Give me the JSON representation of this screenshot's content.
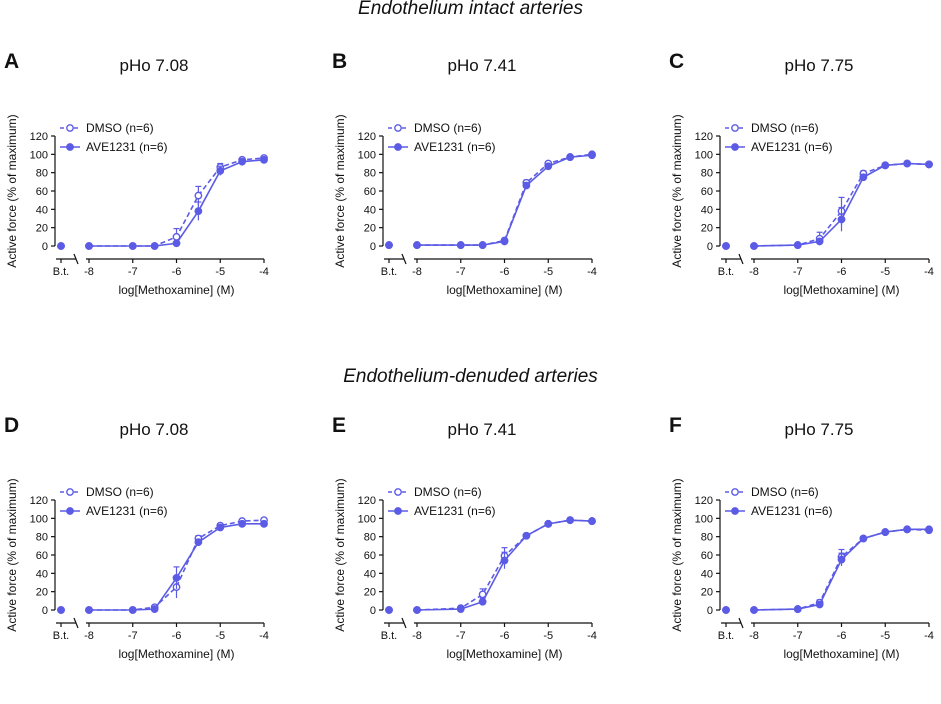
{
  "section_titles": {
    "intact": "Endothelium intact arteries",
    "denuded": "Endothelium-denuded arteries"
  },
  "colors": {
    "series": "#5b5be6",
    "axis": "#111111"
  },
  "chart_data": [
    {
      "type": "line",
      "panel": "A",
      "title": "pHo 7.08",
      "xlabel": "log[Methoxamine] (M)",
      "ylabel": "Active force (% of maximum)",
      "xlim": [
        -8,
        -4
      ],
      "ylim": [
        0,
        120
      ],
      "x_ticks": [
        -8,
        -7,
        -6,
        -5,
        -4
      ],
      "y_ticks": [
        0,
        20,
        40,
        60,
        80,
        100,
        120
      ],
      "baseline_label": "B.t.",
      "legend_position": "top-left",
      "x": [
        -8,
        -7,
        -6.5,
        -6,
        -5.5,
        -5,
        -4.5,
        -4
      ],
      "series": [
        {
          "name": "DMSO (n=6)",
          "style": "dashed-open",
          "baseline": 0,
          "values": [
            0,
            0,
            0,
            10,
            55,
            86,
            94,
            96
          ],
          "errors": [
            0,
            0,
            0,
            9,
            10,
            4,
            2,
            2
          ]
        },
        {
          "name": "AVE1231 (n=6)",
          "style": "solid-filled",
          "baseline": 0,
          "values": [
            0,
            0,
            0,
            3,
            38,
            82,
            92,
            94
          ],
          "errors": [
            0,
            0,
            0,
            2,
            10,
            5,
            2,
            2
          ]
        }
      ]
    },
    {
      "type": "line",
      "panel": "B",
      "title": "pHo 7.41",
      "xlabel": "log[Methoxamine] (M)",
      "ylabel": "Active force (% of maximum)",
      "xlim": [
        -8,
        -4
      ],
      "ylim": [
        0,
        120
      ],
      "x_ticks": [
        -8,
        -7,
        -6,
        -5,
        -4
      ],
      "y_ticks": [
        0,
        20,
        40,
        60,
        80,
        100,
        120
      ],
      "baseline_label": "B.t.",
      "legend_position": "top-left",
      "x": [
        -8,
        -7,
        -6.5,
        -6,
        -5.5,
        -5,
        -4.5,
        -4
      ],
      "series": [
        {
          "name": "DMSO (n=6)",
          "style": "dashed-open",
          "baseline": 1,
          "values": [
            1,
            1,
            1,
            6,
            69,
            90,
            97,
            100
          ],
          "errors": [
            0,
            0,
            0,
            1,
            3,
            2,
            1,
            1
          ]
        },
        {
          "name": "AVE1231 (n=6)",
          "style": "solid-filled",
          "baseline": 1,
          "values": [
            1,
            1,
            1,
            5,
            66,
            87,
            97,
            99
          ],
          "errors": [
            0,
            0,
            0,
            1,
            3,
            2,
            1,
            1
          ]
        }
      ]
    },
    {
      "type": "line",
      "panel": "C",
      "title": "pHo 7.75",
      "xlabel": "log[Methoxamine] (M)",
      "ylabel": "Active force (% of maximum)",
      "xlim": [
        -8,
        -4
      ],
      "ylim": [
        0,
        120
      ],
      "x_ticks": [
        -8,
        -7,
        -6,
        -5,
        -4
      ],
      "y_ticks": [
        0,
        20,
        40,
        60,
        80,
        100,
        120
      ],
      "baseline_label": "B.t.",
      "legend_position": "top-left",
      "x": [
        -8,
        -7,
        -6.5,
        -6,
        -5.5,
        -5,
        -4.5,
        -4
      ],
      "series": [
        {
          "name": "DMSO (n=6)",
          "style": "dashed-open",
          "baseline": 0,
          "values": [
            0,
            1,
            8,
            38,
            79,
            88,
            90,
            89
          ],
          "errors": [
            0,
            0,
            7,
            15,
            3,
            2,
            1,
            1
          ]
        },
        {
          "name": "AVE1231 (n=6)",
          "style": "solid-filled",
          "baseline": 0,
          "values": [
            0,
            1,
            5,
            29,
            75,
            88,
            90,
            89
          ],
          "errors": [
            0,
            0,
            2,
            13,
            3,
            2,
            1,
            1
          ]
        }
      ]
    },
    {
      "type": "line",
      "panel": "D",
      "title": "pHo 7.08",
      "xlabel": "log[Methoxamine] (M)",
      "ylabel": "Active force (% of maximum)",
      "xlim": [
        -8,
        -4
      ],
      "ylim": [
        0,
        120
      ],
      "x_ticks": [
        -8,
        -7,
        -6,
        -5,
        -4
      ],
      "y_ticks": [
        0,
        20,
        40,
        60,
        80,
        100,
        120
      ],
      "baseline_label": "B.t.",
      "legend_position": "top-left",
      "x": [
        -8,
        -7,
        -6.5,
        -6,
        -5.5,
        -5,
        -4.5,
        -4
      ],
      "series": [
        {
          "name": "DMSO (n=6)",
          "style": "dashed-open",
          "baseline": 0,
          "values": [
            0,
            0,
            3,
            25,
            78,
            92,
            97,
            98
          ],
          "errors": [
            0,
            0,
            2,
            12,
            3,
            2,
            1,
            1
          ]
        },
        {
          "name": "AVE1231 (n=6)",
          "style": "solid-filled",
          "baseline": 0,
          "values": [
            0,
            0,
            1,
            35,
            74,
            90,
            94,
            94
          ],
          "errors": [
            0,
            0,
            1,
            12,
            3,
            2,
            1,
            1
          ]
        }
      ]
    },
    {
      "type": "line",
      "panel": "E",
      "title": "pHo 7.41",
      "xlabel": "log[Methoxamine] (M)",
      "ylabel": "Active force (% of maximum)",
      "xlim": [
        -8,
        -4
      ],
      "ylim": [
        0,
        120
      ],
      "x_ticks": [
        -8,
        -7,
        -6,
        -5,
        -4
      ],
      "y_ticks": [
        0,
        20,
        40,
        60,
        80,
        100,
        120
      ],
      "baseline_label": "B.t.",
      "legend_position": "top-left",
      "x": [
        -8,
        -7,
        -6.5,
        -6,
        -5.5,
        -5,
        -4.5,
        -4
      ],
      "series": [
        {
          "name": "DMSO (n=6)",
          "style": "dashed-open",
          "baseline": 0,
          "values": [
            0,
            2,
            17,
            59,
            81,
            94,
            98,
            97
          ],
          "errors": [
            0,
            1,
            6,
            9,
            2,
            1,
            1,
            1
          ]
        },
        {
          "name": "AVE1231 (n=6)",
          "style": "solid-filled",
          "baseline": 0,
          "values": [
            0,
            1,
            9,
            54,
            81,
            94,
            98,
            97
          ],
          "errors": [
            0,
            1,
            4,
            9,
            2,
            1,
            1,
            1
          ]
        }
      ]
    },
    {
      "type": "line",
      "panel": "F",
      "title": "pHo 7.75",
      "xlabel": "log[Methoxamine] (M)",
      "ylabel": "Active force (% of maximum)",
      "xlim": [
        -8,
        -4
      ],
      "ylim": [
        0,
        120
      ],
      "x_ticks": [
        -8,
        -7,
        -6,
        -5,
        -4
      ],
      "y_ticks": [
        0,
        20,
        40,
        60,
        80,
        100,
        120
      ],
      "baseline_label": "B.t.",
      "legend_position": "top-left",
      "x": [
        -8,
        -7,
        -6.5,
        -6,
        -5.5,
        -5,
        -4.5,
        -4
      ],
      "series": [
        {
          "name": "DMSO (n=6)",
          "style": "dashed-open",
          "baseline": 0,
          "values": [
            0,
            1,
            8,
            58,
            78,
            85,
            88,
            87
          ],
          "errors": [
            0,
            0,
            3,
            8,
            2,
            1,
            1,
            1
          ]
        },
        {
          "name": "AVE1231 (n=6)",
          "style": "solid-filled",
          "baseline": 0,
          "values": [
            0,
            1,
            6,
            55,
            78,
            85,
            88,
            88
          ],
          "errors": [
            0,
            0,
            2,
            7,
            2,
            1,
            1,
            1
          ]
        }
      ]
    }
  ]
}
